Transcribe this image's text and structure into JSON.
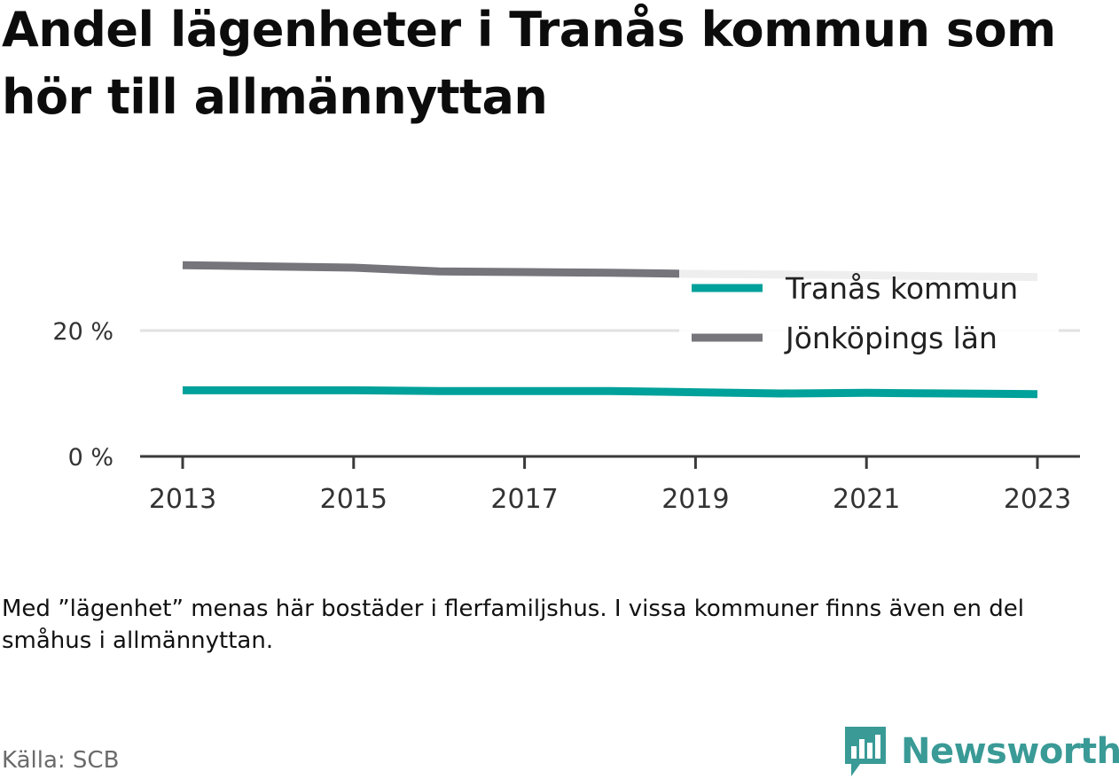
{
  "page": {
    "title": "Andel lägenheter i Tranås kommun som hör till allmännyttan",
    "note": "Med ”lägenhet” menas här bostäder i flerfamiljshus. I vissa kommuner finns även en del småhus i allmännyttan.",
    "source": "Källa: SCB",
    "brand": "Newsworthy"
  },
  "colors": {
    "tranas": "#00a19a",
    "jonkoping": "#76757b",
    "brand": "#3a9a96"
  },
  "chart_data": {
    "type": "line",
    "title": "Andel lägenheter i Tranås kommun som hör till allmännyttan",
    "xlabel": "",
    "ylabel": "",
    "x": [
      2013,
      2014,
      2015,
      2016,
      2017,
      2018,
      2019,
      2020,
      2021,
      2022,
      2023
    ],
    "xticks": [
      2013,
      2015,
      2017,
      2019,
      2021,
      2023
    ],
    "yticks": [
      {
        "value": 0,
        "label": "0 %"
      },
      {
        "value": 20,
        "label": "20 %"
      }
    ],
    "ylim": [
      0,
      36
    ],
    "grid": true,
    "legend_position": "top-right",
    "series": [
      {
        "name": "Tranås kommun",
        "values": [
          10.5,
          10.5,
          10.5,
          10.4,
          10.4,
          10.4,
          10.2,
          10.0,
          10.1,
          10.0,
          9.9
        ]
      },
      {
        "name": "Jönköpings län",
        "values": [
          30.4,
          30.2,
          30.0,
          29.4,
          29.3,
          29.2,
          29.0,
          28.9,
          28.8,
          28.6,
          28.5
        ]
      }
    ]
  }
}
